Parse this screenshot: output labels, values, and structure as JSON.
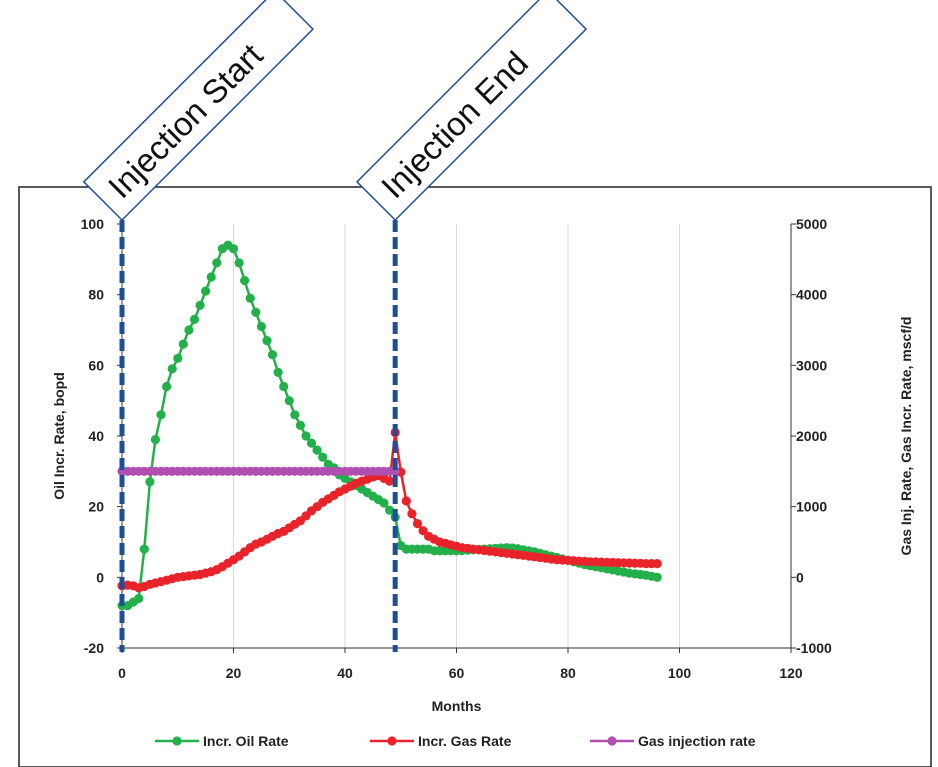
{
  "chart_data": {
    "type": "line",
    "title": "",
    "xlabel": "Months",
    "ylabel_left": "Oil Incr. Rate, bopd",
    "ylabel_right": "Gas Inj. Rate, Gas Incr. Rate, mscf/d",
    "xlim": [
      0,
      120
    ],
    "ylim_left": [
      -20,
      100
    ],
    "ylim_right": [
      -1000,
      5000
    ],
    "x_ticks": [
      "0",
      "20",
      "40",
      "60",
      "80",
      "100",
      "120"
    ],
    "y_left_ticks": [
      "-20",
      "0",
      "20",
      "40",
      "60",
      "80",
      "100"
    ],
    "y_right_ticks": [
      "-1000",
      "0",
      "1000",
      "2000",
      "3000",
      "4000",
      "5000"
    ],
    "grid": "vertical-only",
    "legend_position": "bottom",
    "colors": {
      "oil": "#23b04a",
      "gas": "#e8232a",
      "injection": "#b04fb0",
      "marker_line": "#1f4e99",
      "callout_border": "#1f4e99"
    },
    "series": [
      {
        "name": "Incr. Oil Rate",
        "axis": "left",
        "color": "#23b04a",
        "x": [
          0,
          1,
          2,
          3,
          4,
          5,
          6,
          7,
          8,
          9,
          10,
          11,
          12,
          13,
          14,
          15,
          16,
          17,
          18,
          19,
          20,
          21,
          22,
          23,
          24,
          25,
          26,
          27,
          28,
          29,
          30,
          31,
          32,
          33,
          34,
          35,
          36,
          37,
          38,
          39,
          40,
          41,
          42,
          43,
          44,
          45,
          46,
          47,
          48,
          49,
          50,
          51,
          52,
          53,
          54,
          55,
          56,
          57,
          58,
          59,
          60,
          61,
          62,
          63,
          64,
          65,
          66,
          67,
          68,
          69,
          70,
          71,
          72,
          73,
          74,
          75,
          76,
          77,
          78,
          79,
          80,
          81,
          82,
          83,
          84,
          85,
          86,
          87,
          88,
          89,
          90,
          91,
          92,
          93,
          94,
          95,
          96
        ],
        "y": [
          -8,
          -8,
          -7,
          -6,
          8,
          27,
          39,
          46,
          54,
          59,
          62,
          66,
          70,
          73,
          77,
          81,
          85,
          89,
          93,
          94,
          93,
          89,
          84,
          79,
          75,
          71,
          67,
          63,
          58,
          54,
          50,
          46,
          43,
          40,
          38,
          36,
          34,
          32,
          31,
          29,
          28,
          27,
          26,
          25,
          24,
          23,
          22,
          21,
          19,
          17,
          9,
          8,
          8,
          8,
          8,
          8,
          7.5,
          7.5,
          7.5,
          7.5,
          7.5,
          7.6,
          7.7,
          7.8,
          7.9,
          8,
          8.1,
          8.2,
          8.3,
          8.4,
          8.3,
          8.1,
          7.8,
          7.5,
          7.2,
          6.8,
          6.4,
          6,
          5.6,
          5.2,
          4.8,
          4.4,
          4,
          3.6,
          3.3,
          3,
          2.7,
          2.4,
          2.1,
          1.8,
          1.5,
          1.2,
          1,
          0.8,
          0.6,
          0.3,
          0
        ],
        "labels": []
      },
      {
        "name": "Incr. Gas Rate",
        "axis": "right",
        "color": "#e8232a",
        "x": [
          0,
          1,
          2,
          3,
          4,
          5,
          6,
          7,
          8,
          9,
          10,
          11,
          12,
          13,
          14,
          15,
          16,
          17,
          18,
          19,
          20,
          21,
          22,
          23,
          24,
          25,
          26,
          27,
          28,
          29,
          30,
          31,
          32,
          33,
          34,
          35,
          36,
          37,
          38,
          39,
          40,
          41,
          42,
          43,
          44,
          45,
          46,
          47,
          48,
          49,
          50,
          51,
          52,
          53,
          54,
          55,
          56,
          57,
          58,
          59,
          60,
          61,
          62,
          63,
          64,
          65,
          66,
          67,
          68,
          69,
          70,
          71,
          72,
          73,
          74,
          75,
          76,
          77,
          78,
          79,
          80,
          81,
          82,
          83,
          84,
          85,
          86,
          87,
          88,
          89,
          90,
          91,
          92,
          93,
          94,
          95,
          96
        ],
        "y": [
          -120,
          -110,
          -120,
          -150,
          -130,
          -100,
          -80,
          -60,
          -40,
          -20,
          0,
          10,
          20,
          30,
          40,
          60,
          80,
          110,
          150,
          200,
          250,
          300,
          360,
          420,
          470,
          500,
          540,
          580,
          620,
          650,
          700,
          750,
          800,
          870,
          940,
          1000,
          1060,
          1110,
          1160,
          1210,
          1250,
          1290,
          1330,
          1360,
          1390,
          1420,
          1440,
          1400,
          1360,
          2050,
          1490,
          1080,
          900,
          760,
          660,
          580,
          540,
          500,
          480,
          460,
          440,
          420,
          410,
          400,
          390,
          380,
          370,
          360,
          350,
          340,
          330,
          320,
          310,
          300,
          290,
          280,
          270,
          260,
          250,
          245,
          240,
          235,
          230,
          225,
          220,
          218,
          215,
          212,
          210,
          207,
          205,
          203,
          200,
          198,
          195,
          195,
          195
        ],
        "labels": []
      },
      {
        "name": "Gas injection rate",
        "axis": "right",
        "color": "#b04fb0",
        "x": [
          0,
          1,
          2,
          3,
          4,
          5,
          6,
          7,
          8,
          9,
          10,
          11,
          12,
          13,
          14,
          15,
          16,
          17,
          18,
          19,
          20,
          21,
          22,
          23,
          24,
          25,
          26,
          27,
          28,
          29,
          30,
          31,
          32,
          33,
          34,
          35,
          36,
          37,
          38,
          39,
          40,
          41,
          42,
          43,
          44,
          45,
          46,
          47,
          48,
          49
        ],
        "y": [
          1500,
          1500,
          1500,
          1500,
          1500,
          1500,
          1500,
          1500,
          1500,
          1500,
          1500,
          1500,
          1500,
          1500,
          1500,
          1500,
          1500,
          1500,
          1500,
          1500,
          1500,
          1500,
          1500,
          1500,
          1500,
          1500,
          1500,
          1500,
          1500,
          1500,
          1500,
          1500,
          1500,
          1500,
          1500,
          1500,
          1500,
          1500,
          1500,
          1500,
          1500,
          1500,
          1500,
          1500,
          1500,
          1500,
          1500,
          1500,
          1500,
          1500
        ],
        "labels": []
      }
    ],
    "annotations": [
      {
        "label": "Injection Start",
        "x": 0
      },
      {
        "label": "Injection End",
        "x": 49
      }
    ]
  }
}
